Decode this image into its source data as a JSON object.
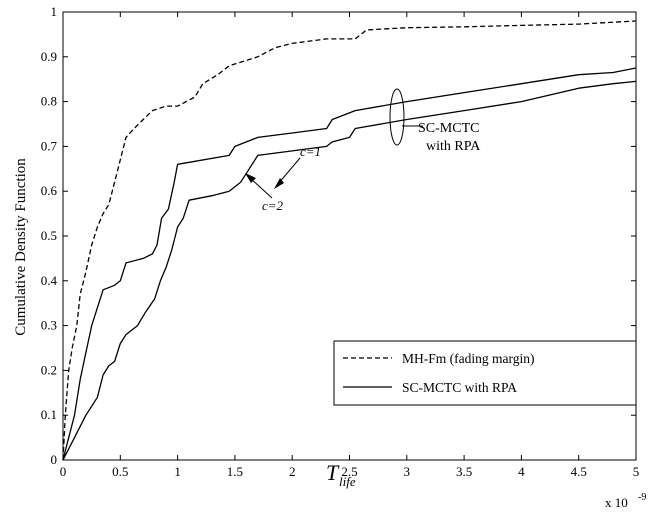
{
  "chart_data": {
    "type": "line",
    "ylabel": "Cumulative Density Function",
    "xlabel_main": "T",
    "xlabel_sub": "life",
    "x_multiplier": "x 10",
    "x_multiplier_exp": "-9",
    "xlim": [
      0,
      5
    ],
    "ylim": [
      0,
      1
    ],
    "x_ticks": [
      "0",
      "0.5",
      "1",
      "1.5",
      "2",
      "2.5",
      "3",
      "3.5",
      "4",
      "4.5",
      "5"
    ],
    "y_ticks": [
      "0",
      "0.1",
      "0.2",
      "0.3",
      "0.4",
      "0.5",
      "0.6",
      "0.7",
      "0.8",
      "0.9",
      "1"
    ],
    "grid": false,
    "legend_position": "bottom-right",
    "series": [
      {
        "name": "MH-Fm (fading margin)",
        "style": "dashed",
        "color": "#000000",
        "points": [
          [
            0,
            0
          ],
          [
            0.02,
            0.1
          ],
          [
            0.05,
            0.2
          ],
          [
            0.08,
            0.25
          ],
          [
            0.12,
            0.3
          ],
          [
            0.15,
            0.37
          ],
          [
            0.2,
            0.42
          ],
          [
            0.25,
            0.48
          ],
          [
            0.3,
            0.52
          ],
          [
            0.35,
            0.55
          ],
          [
            0.4,
            0.57
          ],
          [
            0.45,
            0.62
          ],
          [
            0.5,
            0.67
          ],
          [
            0.55,
            0.72
          ],
          [
            0.62,
            0.74
          ],
          [
            0.7,
            0.76
          ],
          [
            0.78,
            0.78
          ],
          [
            0.9,
            0.79
          ],
          [
            1.0,
            0.79
          ],
          [
            1.15,
            0.81
          ],
          [
            1.22,
            0.84
          ],
          [
            1.35,
            0.86
          ],
          [
            1.45,
            0.88
          ],
          [
            1.7,
            0.9
          ],
          [
            1.85,
            0.92
          ],
          [
            2.0,
            0.93
          ],
          [
            2.3,
            0.94
          ],
          [
            2.55,
            0.94
          ],
          [
            2.65,
            0.96
          ],
          [
            3.0,
            0.965
          ],
          [
            3.5,
            0.967
          ],
          [
            4.0,
            0.97
          ],
          [
            4.5,
            0.973
          ],
          [
            5.0,
            0.98
          ]
        ]
      },
      {
        "name": "SC-MCTC with RPA",
        "label": "c=1",
        "style": "solid",
        "color": "#000000",
        "points": [
          [
            0,
            0
          ],
          [
            0.05,
            0.05
          ],
          [
            0.1,
            0.1
          ],
          [
            0.15,
            0.18
          ],
          [
            0.2,
            0.24
          ],
          [
            0.25,
            0.3
          ],
          [
            0.3,
            0.34
          ],
          [
            0.35,
            0.38
          ],
          [
            0.45,
            0.39
          ],
          [
            0.5,
            0.4
          ],
          [
            0.55,
            0.44
          ],
          [
            0.7,
            0.45
          ],
          [
            0.78,
            0.46
          ],
          [
            0.82,
            0.48
          ],
          [
            0.86,
            0.54
          ],
          [
            0.92,
            0.56
          ],
          [
            0.97,
            0.62
          ],
          [
            1.0,
            0.66
          ],
          [
            1.45,
            0.68
          ],
          [
            1.5,
            0.7
          ],
          [
            1.6,
            0.71
          ],
          [
            1.7,
            0.72
          ],
          [
            2.0,
            0.73
          ],
          [
            2.3,
            0.74
          ],
          [
            2.35,
            0.76
          ],
          [
            2.55,
            0.78
          ],
          [
            3.0,
            0.8
          ],
          [
            3.5,
            0.82
          ],
          [
            4.0,
            0.84
          ],
          [
            4.5,
            0.86
          ],
          [
            4.8,
            0.865
          ],
          [
            5.0,
            0.875
          ]
        ]
      },
      {
        "name": "SC-MCTC with RPA",
        "label": "c=2",
        "style": "solid",
        "color": "#000000",
        "points": [
          [
            0,
            0
          ],
          [
            0.1,
            0.05
          ],
          [
            0.2,
            0.1
          ],
          [
            0.3,
            0.14
          ],
          [
            0.35,
            0.19
          ],
          [
            0.4,
            0.21
          ],
          [
            0.45,
            0.22
          ],
          [
            0.5,
            0.26
          ],
          [
            0.55,
            0.28
          ],
          [
            0.65,
            0.3
          ],
          [
            0.72,
            0.33
          ],
          [
            0.8,
            0.36
          ],
          [
            0.85,
            0.4
          ],
          [
            0.9,
            0.43
          ],
          [
            0.95,
            0.47
          ],
          [
            1.0,
            0.52
          ],
          [
            1.05,
            0.54
          ],
          [
            1.1,
            0.58
          ],
          [
            1.3,
            0.59
          ],
          [
            1.45,
            0.6
          ],
          [
            1.55,
            0.62
          ],
          [
            1.6,
            0.64
          ],
          [
            1.65,
            0.66
          ],
          [
            1.7,
            0.68
          ],
          [
            2.0,
            0.69
          ],
          [
            2.3,
            0.7
          ],
          [
            2.35,
            0.71
          ],
          [
            2.5,
            0.72
          ],
          [
            2.55,
            0.74
          ],
          [
            3.0,
            0.76
          ],
          [
            3.5,
            0.78
          ],
          [
            4.0,
            0.8
          ],
          [
            4.5,
            0.83
          ],
          [
            4.8,
            0.84
          ],
          [
            5.0,
            0.845
          ]
        ]
      }
    ],
    "annotations": {
      "c1": "c=1",
      "c2": "c=2",
      "group_line1": "SC-MCTC",
      "group_line2": "with RPA"
    }
  }
}
